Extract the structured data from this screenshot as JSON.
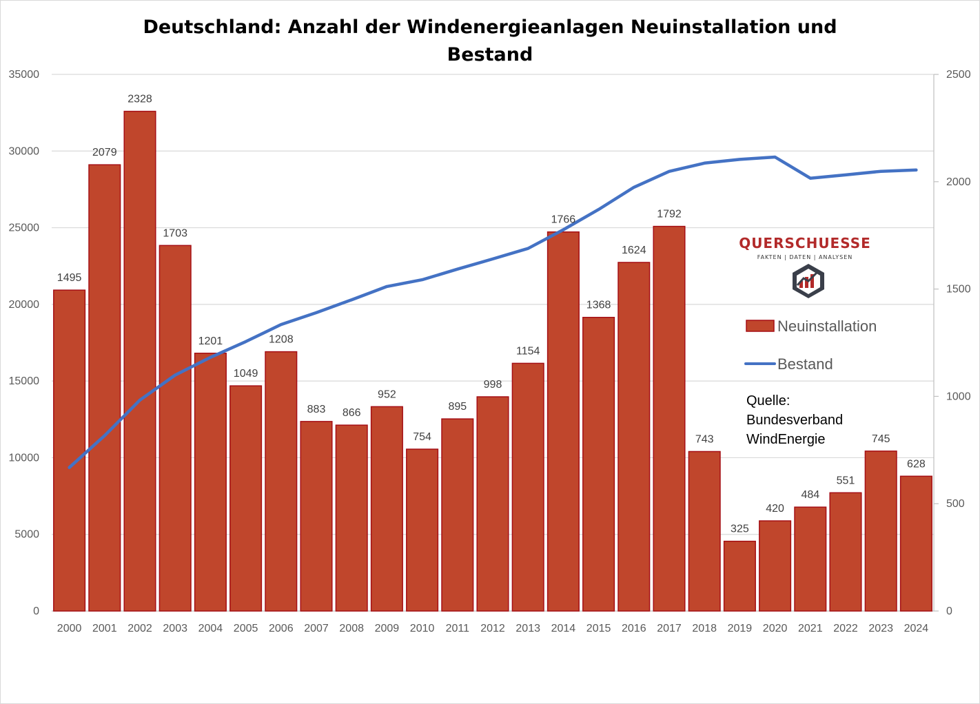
{
  "chart_data": {
    "type": "bar",
    "title": "Deutschland: Anzahl der Windenergieanlagen  Neuinstallation und Bestand",
    "categories": [
      "2000",
      "2001",
      "2002",
      "2003",
      "2004",
      "2005",
      "2006",
      "2007",
      "2008",
      "2009",
      "2010",
      "2011",
      "2012",
      "2013",
      "2014",
      "2015",
      "2016",
      "2017",
      "2018",
      "2019",
      "2020",
      "2021",
      "2022",
      "2023",
      "2024"
    ],
    "series": [
      {
        "name": "Neuinstallation",
        "type": "bar",
        "axis": "right",
        "color": "#c0462c",
        "border_color": "#a50f15",
        "values": [
          1495,
          2079,
          2328,
          1703,
          1201,
          1049,
          1208,
          883,
          866,
          952,
          754,
          895,
          998,
          1154,
          1766,
          1368,
          1624,
          1792,
          743,
          325,
          420,
          484,
          551,
          745,
          628
        ]
      },
      {
        "name": "Bestand",
        "type": "line",
        "axis": "left",
        "color": "#4472c4",
        "values": [
          9359,
          11438,
          13759,
          15387,
          16543,
          17574,
          18685,
          19460,
          20301,
          21164,
          21607,
          22297,
          22962,
          23645,
          24867,
          26188,
          27635,
          28675,
          29213,
          29456,
          29608,
          28230,
          28443,
          28677,
          28766
        ]
      }
    ],
    "left_axis": {
      "min": 0,
      "max": 35000,
      "ticks": [
        "0",
        "5000",
        "10000",
        "15000",
        "20000",
        "25000",
        "30000",
        "35000"
      ]
    },
    "right_axis": {
      "min": 0,
      "max": 2500,
      "ticks": [
        "0",
        "500",
        "1000",
        "1500",
        "2000",
        "2500"
      ]
    },
    "grid": true,
    "legend": {
      "position": "right",
      "items": [
        "Neuinstallation",
        "Bestand"
      ]
    },
    "source": [
      "Quelle:",
      "Bundesverband",
      "WindEnergie"
    ],
    "logo": {
      "name": "QUERSCHUESSE",
      "tagline": "FAKTEN | DATEN | ANALYSEN"
    }
  }
}
